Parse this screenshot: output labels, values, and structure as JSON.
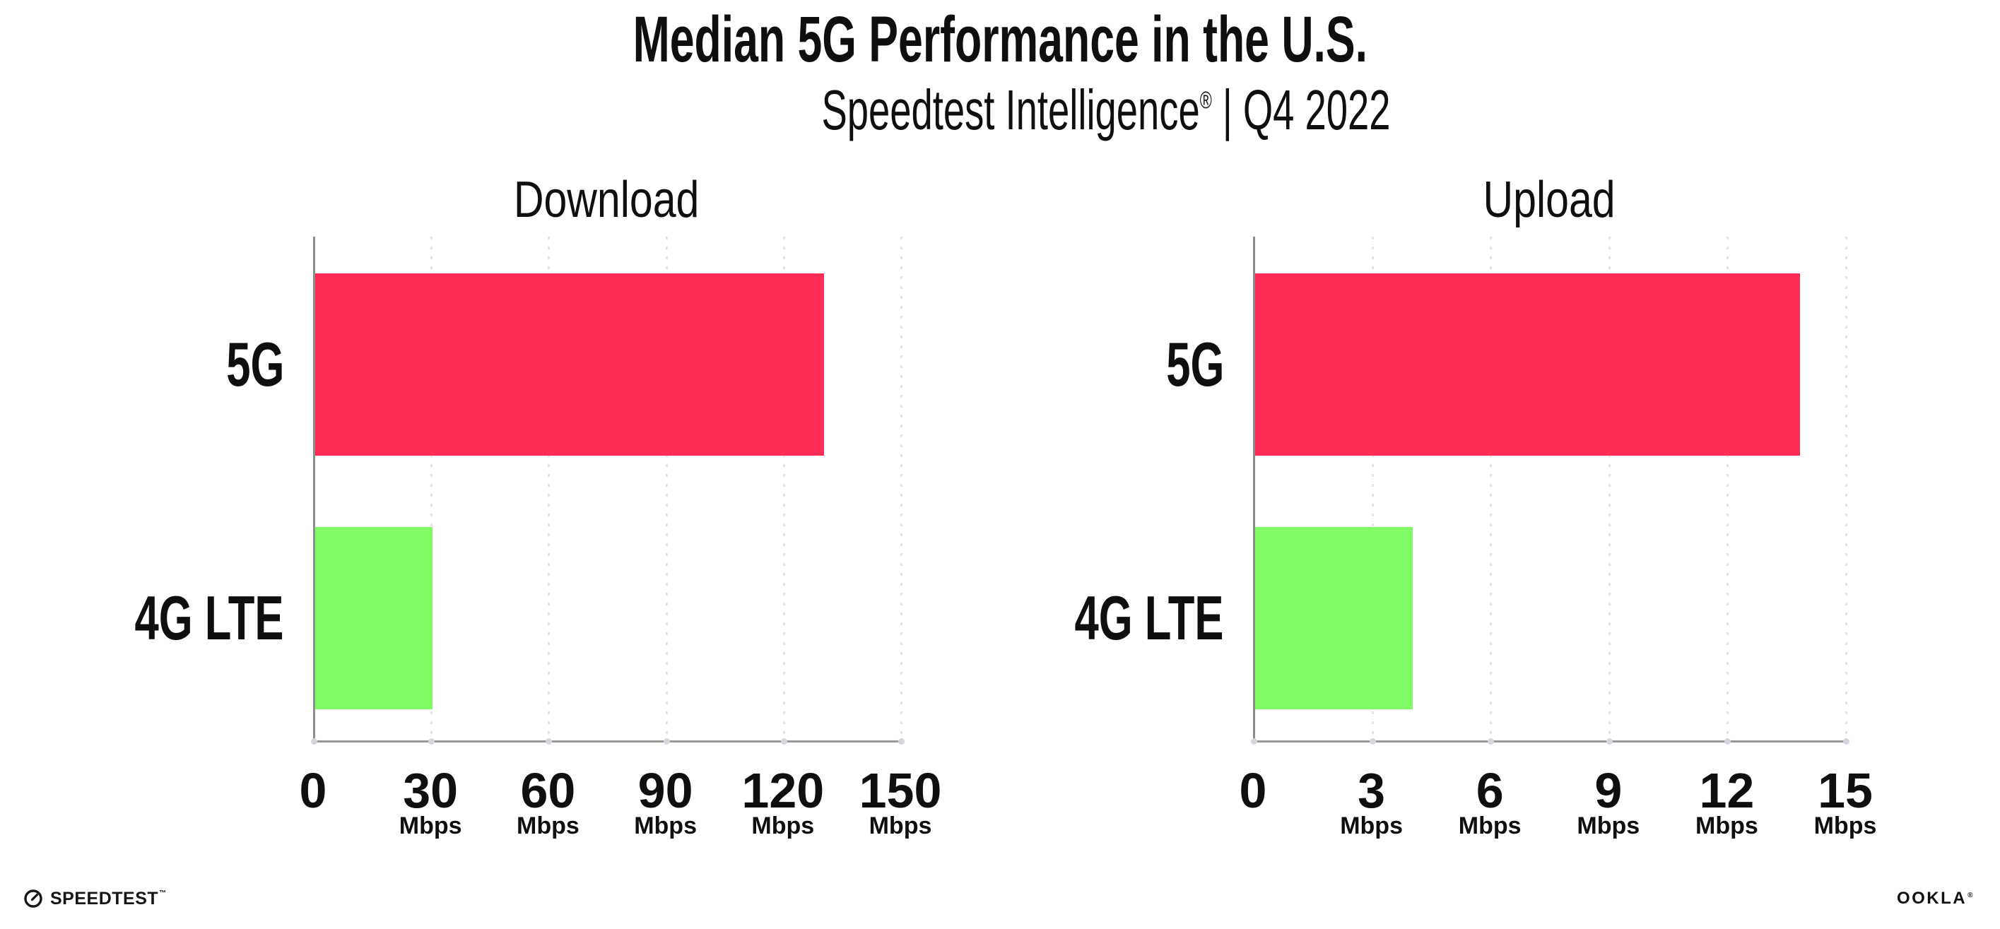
{
  "header": {
    "title": "Median 5G Performance in the U.S.",
    "subtitle": {
      "brand": "Speedtest Intelligence",
      "registered": "®",
      "separator": "|",
      "period": "Q4 2022"
    }
  },
  "footer": {
    "speedtest": {
      "icon": "speedtest-gauge-icon",
      "label": "SPEEDTEST",
      "trademark": "™"
    },
    "ookla": {
      "label": "OOKLA",
      "registered": "®"
    }
  },
  "colors": {
    "bar_5g": "#ff2e56",
    "bar_4g_lte": "#80fb63",
    "axis": "#999999",
    "gridline": "#e2e2ec",
    "tick_dot": "#d5d5df",
    "text": "#0f0f0f",
    "background": "#ffffff"
  },
  "chart_data": [
    {
      "type": "bar",
      "orientation": "horizontal",
      "title": "Download",
      "categories": [
        "5G",
        "4G LTE"
      ],
      "values": [
        130,
        30
      ],
      "unit": "Mbps",
      "xlim": [
        0,
        150
      ],
      "xticks": [
        0,
        30,
        60,
        90,
        120,
        150
      ],
      "bar_colors": [
        "#ff2e56",
        "#80fb63"
      ],
      "grid": "dotted-vertical-at-ticks",
      "legend": "none"
    },
    {
      "type": "bar",
      "orientation": "horizontal",
      "title": "Upload",
      "categories": [
        "5G",
        "4G LTE"
      ],
      "values": [
        13.8,
        4
      ],
      "unit": "Mbps",
      "xlim": [
        0,
        15
      ],
      "xticks": [
        0,
        3,
        6,
        9,
        12,
        15
      ],
      "bar_colors": [
        "#ff2e56",
        "#80fb63"
      ],
      "grid": "dotted-vertical-at-ticks",
      "legend": "none"
    }
  ]
}
